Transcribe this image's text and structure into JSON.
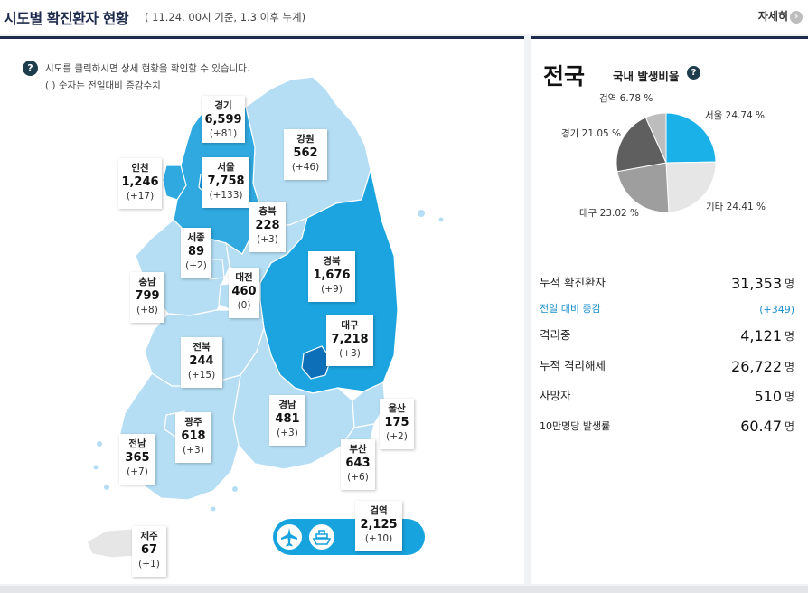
{
  "header": {
    "title": "시도별 확진환자 현황",
    "subtitle": "( 11.24. 00시 기준, 1.3 이후 누계)",
    "more_label": "자세히",
    "more_icon": "chevron-right-icon"
  },
  "map_help": {
    "line1": "시도를 클릭하시면 상세 현황을 확인할 수 있습니다.",
    "line2": "( ) 숫자는 전일대비 증감수치",
    "icon": "question-icon"
  },
  "colors": {
    "navy": "#1f2b4d",
    "light": "#b5def5",
    "mid": "#2fa9e0",
    "dark": "#1689cc",
    "deep": "#0d6fb8",
    "pill": "#17a3de",
    "pie_seoul": "#1ab0e8",
    "pie_other": "#e6e6e6",
    "pie_daegu": "#9e9e9e",
    "pie_gyeonggi": "#5f5f5f",
    "pie_incheon": "#bdbdbd"
  },
  "regions": [
    {
      "id": "gyeonggi",
      "name": "경기",
      "value": "6,599",
      "change": "(+81)"
    },
    {
      "id": "gangwon",
      "name": "강원",
      "value": "562",
      "change": "(+46)"
    },
    {
      "id": "incheon",
      "name": "인천",
      "value": "1,246",
      "change": "(+17)"
    },
    {
      "id": "seoul",
      "name": "서울",
      "value": "7,758",
      "change": "(+133)"
    },
    {
      "id": "chungbuk",
      "name": "충북",
      "value": "228",
      "change": "(+3)"
    },
    {
      "id": "sejong",
      "name": "세종",
      "value": "89",
      "change": "(+2)"
    },
    {
      "id": "chungnam",
      "name": "충남",
      "value": "799",
      "change": "(+8)"
    },
    {
      "id": "daejeon",
      "name": "대전",
      "value": "460",
      "change": "(0)"
    },
    {
      "id": "gyeongbuk",
      "name": "경북",
      "value": "1,676",
      "change": "(+9)"
    },
    {
      "id": "daegu",
      "name": "대구",
      "value": "7,218",
      "change": "(+3)"
    },
    {
      "id": "jeonbuk",
      "name": "전북",
      "value": "244",
      "change": "(+15)"
    },
    {
      "id": "gyeongnam",
      "name": "경남",
      "value": "481",
      "change": "(+3)"
    },
    {
      "id": "ulsan",
      "name": "울산",
      "value": "175",
      "change": "(+2)"
    },
    {
      "id": "gwangju",
      "name": "광주",
      "value": "618",
      "change": "(+3)"
    },
    {
      "id": "jeonnam",
      "name": "전남",
      "value": "365",
      "change": "(+7)"
    },
    {
      "id": "busan",
      "name": "부산",
      "value": "643",
      "change": "(+6)"
    },
    {
      "id": "quarantine",
      "name": "검역",
      "value": "2,125",
      "change": "(+10)"
    },
    {
      "id": "jeju",
      "name": "제주",
      "value": "67",
      "change": "(+1)"
    }
  ],
  "quarantine_icons": [
    "airplane-icon",
    "ship-icon"
  ],
  "national": {
    "title": "전국",
    "rate_title": "국내 발생비율",
    "rate_icon": "question-icon",
    "pie": [
      {
        "name": "서울",
        "pct": 24.74,
        "label": "서울 24.74 %"
      },
      {
        "name": "기타",
        "pct": 24.41,
        "label": "기타 24.41 %"
      },
      {
        "name": "대구",
        "pct": 23.02,
        "label": "대구 23.02 %"
      },
      {
        "name": "경기",
        "pct": 21.05,
        "label": "경기 21.05 %"
      },
      {
        "name": "검역",
        "pct": 6.78,
        "label": "검역 6.78 %"
      }
    ]
  },
  "stats": [
    {
      "label": "누적 확진환자",
      "value": "31,353",
      "unit": "명"
    },
    {
      "label": "전일 대비 증감",
      "value": "(+349)",
      "unit": ""
    },
    {
      "label": "격리중",
      "value": "4,121",
      "unit": "명"
    },
    {
      "label": "누적 격리해제",
      "value": "26,722",
      "unit": "명"
    },
    {
      "label": "사망자",
      "value": "510",
      "unit": "명"
    },
    {
      "label": "10만명당 발생률",
      "value": "60.47",
      "unit": "명"
    }
  ]
}
